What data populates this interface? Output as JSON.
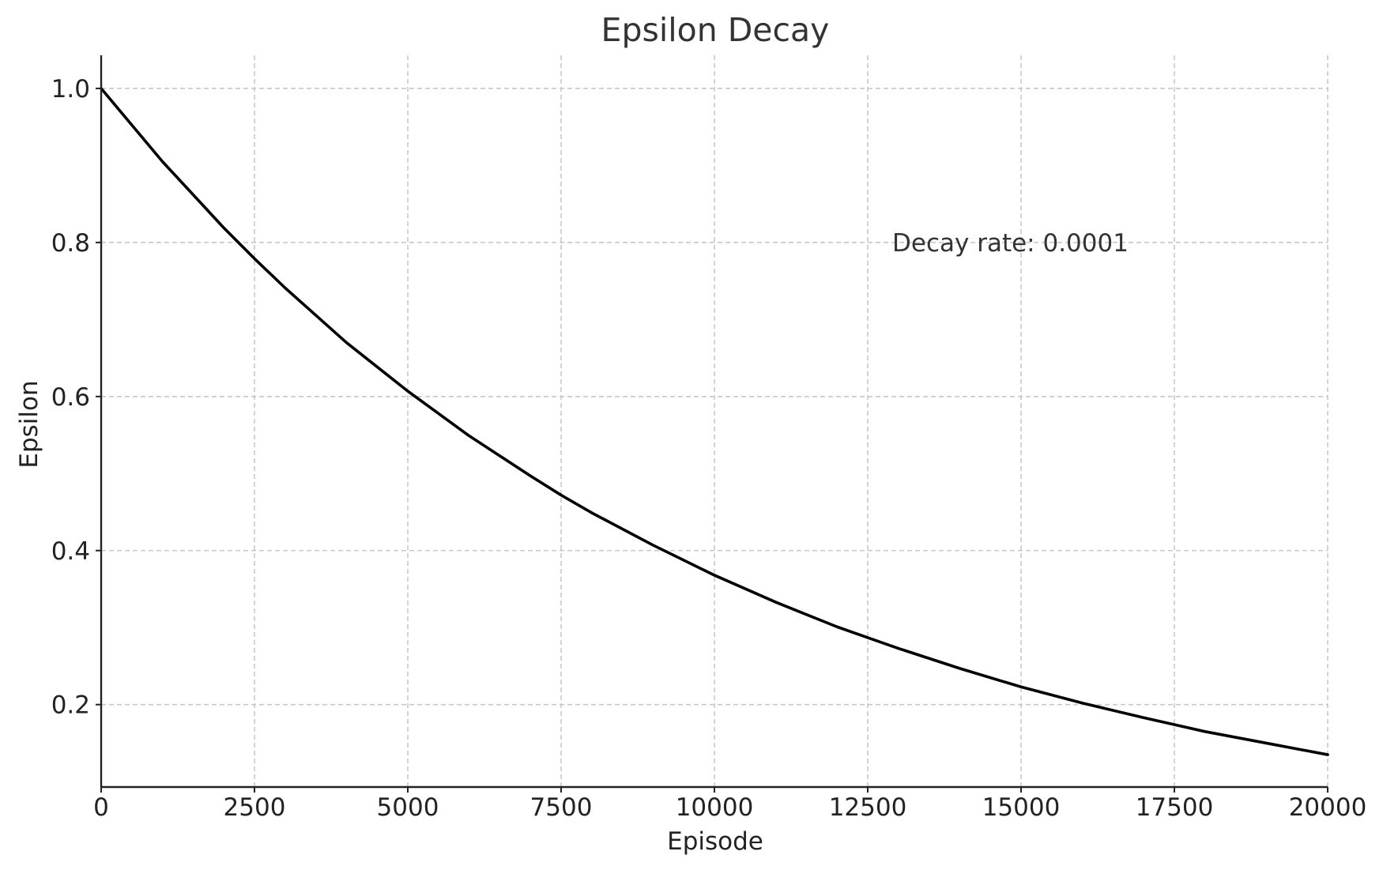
{
  "chart_data": {
    "type": "line",
    "title": "Epsilon Decay",
    "xlabel": "Episode",
    "ylabel": "Epsilon",
    "xlim": [
      0,
      20000
    ],
    "ylim": [
      0.093,
      1.043
    ],
    "xticks": [
      0,
      2500,
      5000,
      7500,
      10000,
      12500,
      15000,
      17500,
      20000
    ],
    "xtick_labels": [
      "0",
      "2500",
      "5000",
      "7500",
      "10000",
      "12500",
      "15000",
      "17500",
      "20000"
    ],
    "yticks": [
      0.2,
      0.4,
      0.6,
      0.8,
      1.0
    ],
    "ytick_labels": [
      "0.2",
      "0.4",
      "0.6",
      "0.8",
      "1.0"
    ],
    "grid": true,
    "series": [
      {
        "color": "#000000",
        "x": [
          0,
          1000,
          2000,
          2500,
          3000,
          4000,
          5000,
          6000,
          7000,
          7500,
          8000,
          9000,
          10000,
          11000,
          12000,
          12500,
          13000,
          14000,
          15000,
          16000,
          17000,
          17500,
          18000,
          19000,
          20000
        ],
        "y": [
          1.0,
          0.905,
          0.819,
          0.779,
          0.741,
          0.67,
          0.607,
          0.549,
          0.497,
          0.472,
          0.449,
          0.407,
          0.368,
          0.333,
          0.301,
          0.287,
          0.273,
          0.247,
          0.223,
          0.202,
          0.183,
          0.174,
          0.165,
          0.15,
          0.135
        ]
      }
    ],
    "annotations": [
      {
        "text": "Decay rate: 0.0001",
        "x": 12900,
        "y": 0.8
      }
    ]
  }
}
